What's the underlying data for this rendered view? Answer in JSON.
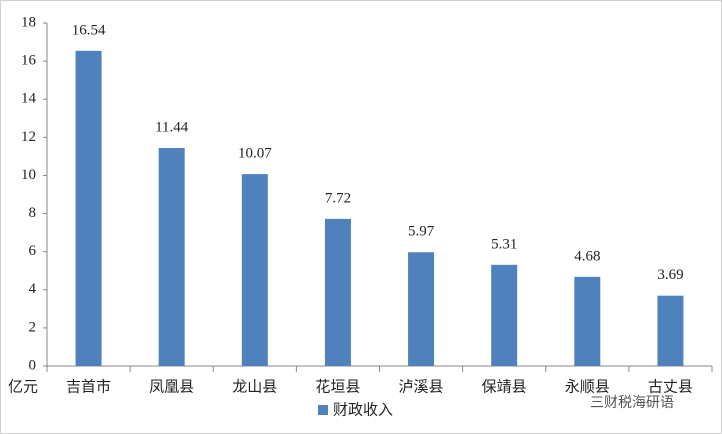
{
  "chart_data": {
    "type": "bar",
    "y_unit_label": "亿元",
    "categories": [
      "吉首市",
      "凤凰县",
      "龙山县",
      "花垣县",
      "泸溪县",
      "保靖县",
      "永顺县",
      "古丈县"
    ],
    "series": [
      {
        "name": "财政收入",
        "color": "#4f81bd",
        "values": [
          16.54,
          11.44,
          10.07,
          7.72,
          5.97,
          5.31,
          4.68,
          3.69
        ]
      }
    ],
    "ylim": [
      0,
      18
    ],
    "yticks": [
      0,
      2,
      4,
      6,
      8,
      10,
      12,
      14,
      16,
      18
    ],
    "legend": "bottom",
    "watermark": "三财税海研语"
  }
}
